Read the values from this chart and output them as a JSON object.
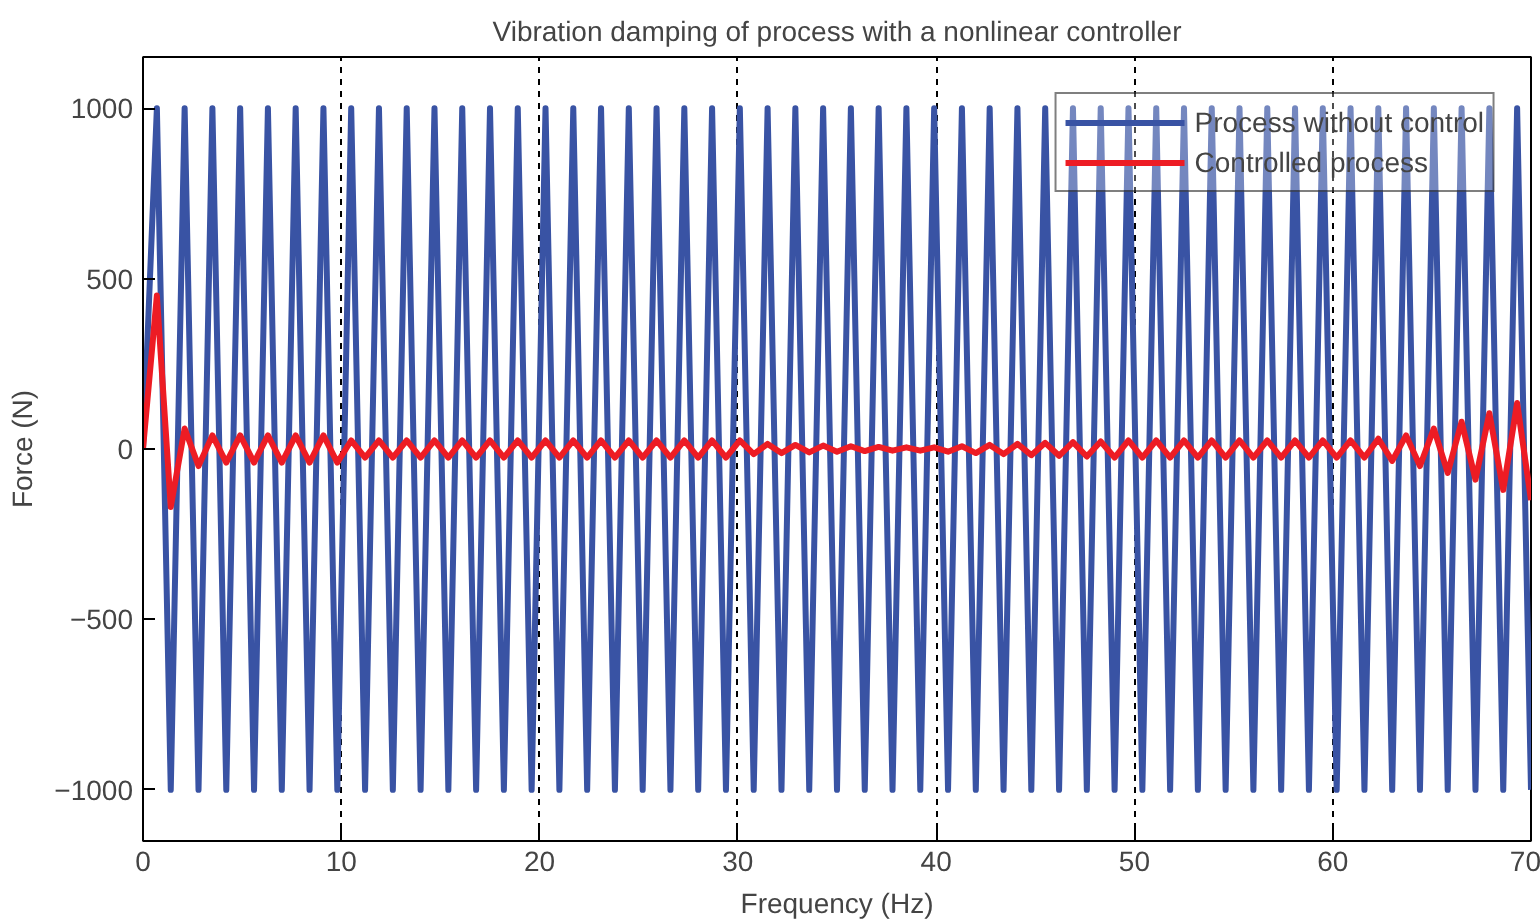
{
  "chart_data": {
    "type": "line",
    "title": "Vibration damping of process with a nonlinear controller",
    "xlabel": "Frequency (Hz)",
    "ylabel": "Force (N)",
    "xlim": [
      0,
      70
    ],
    "ylim": [
      -1150,
      1150
    ],
    "xticks": [
      0,
      10,
      20,
      30,
      40,
      50,
      60,
      70
    ],
    "yticks": [
      -1000,
      -500,
      0,
      500,
      1000
    ],
    "grid": "x",
    "legend": "top right",
    "x": [
      0,
      0.7,
      1.4,
      2.1,
      2.8,
      3.5,
      4.2,
      4.9,
      5.6,
      6.3,
      7,
      7.7,
      8.4,
      9.1,
      9.8,
      10.5,
      11.2,
      11.9,
      12.6,
      13.3,
      14,
      14.7,
      15.4,
      16.1,
      16.8,
      17.5,
      18.2,
      18.9,
      19.6,
      20.3,
      21,
      21.7,
      22.4,
      23.1,
      23.8,
      24.5,
      25.2,
      25.9,
      26.6,
      27.3,
      28,
      28.7,
      29.4,
      30.1,
      30.8,
      31.5,
      32.2,
      32.9,
      33.6,
      34.3,
      35,
      35.7,
      36.4,
      37.1,
      37.8,
      38.5,
      39.2,
      39.9,
      40.6,
      41.3,
      42,
      42.7,
      43.4,
      44.1,
      44.8,
      45.5,
      46.2,
      46.9,
      47.6,
      48.3,
      49,
      49.7,
      50.4,
      51.1,
      51.8,
      52.5,
      53.2,
      53.9,
      54.6,
      55.3,
      56,
      56.7,
      57.4,
      58.1,
      58.8,
      59.5,
      60.2,
      60.9,
      61.6,
      62.3,
      63,
      63.7,
      64.4,
      65.1,
      65.8,
      66.5,
      67.2,
      67.9,
      68.6,
      69.3,
      70
    ],
    "series": [
      {
        "name": "Process without control",
        "color": "#3953a4",
        "values": [
          0,
          1000,
          -1000,
          1000,
          -1000,
          1000,
          -1000,
          1000,
          -1000,
          1000,
          -1000,
          1000,
          -1000,
          1000,
          -1000,
          1000,
          -1000,
          1000,
          -1000,
          1000,
          -1000,
          1000,
          -1000,
          1000,
          -1000,
          1000,
          -1000,
          1000,
          -1000,
          1000,
          -1000,
          1000,
          -1000,
          1000,
          -1000,
          1000,
          -1000,
          1000,
          -1000,
          1000,
          -1000,
          1000,
          -1000,
          1000,
          -1000,
          1000,
          -1000,
          1000,
          -1000,
          1000,
          -1000,
          1000,
          -1000,
          1000,
          -1000,
          1000,
          -1000,
          1000,
          -1000,
          1000,
          -1000,
          1000,
          -1000,
          1000,
          -1000,
          1000,
          -1000,
          1000,
          -1000,
          1000,
          -1000,
          1000,
          -1000,
          1000,
          -1000,
          1000,
          -1000,
          1000,
          -1000,
          1000,
          -1000,
          1000,
          -1000,
          1000,
          -1000,
          1000,
          -1000,
          1000,
          -1000,
          1000,
          -1000,
          1000,
          -1000,
          1000,
          -1000,
          1000,
          -1000,
          1000,
          -1000,
          1000,
          -1000
        ]
      },
      {
        "name": "Controlled process",
        "color": "#ed1c24",
        "values": [
          0,
          450,
          -170,
          60,
          -50,
          40,
          -40,
          40,
          -40,
          40,
          -40,
          40,
          -40,
          40,
          -40,
          25,
          -25,
          25,
          -25,
          25,
          -25,
          25,
          -25,
          25,
          -25,
          25,
          -25,
          25,
          -25,
          25,
          -25,
          25,
          -25,
          25,
          -25,
          25,
          -25,
          25,
          -25,
          25,
          -25,
          25,
          -25,
          25,
          -15,
          15,
          -12,
          12,
          -10,
          10,
          -8,
          8,
          -6,
          6,
          -5,
          5,
          -5,
          5,
          -8,
          8,
          -12,
          12,
          -15,
          15,
          -18,
          18,
          -20,
          20,
          -22,
          22,
          -25,
          25,
          -25,
          25,
          -25,
          25,
          -25,
          25,
          -25,
          25,
          -25,
          25,
          -25,
          25,
          -25,
          25,
          -25,
          25,
          -25,
          30,
          -35,
          40,
          -50,
          60,
          -70,
          80,
          -90,
          105,
          -120,
          135,
          -150
        ]
      }
    ]
  }
}
